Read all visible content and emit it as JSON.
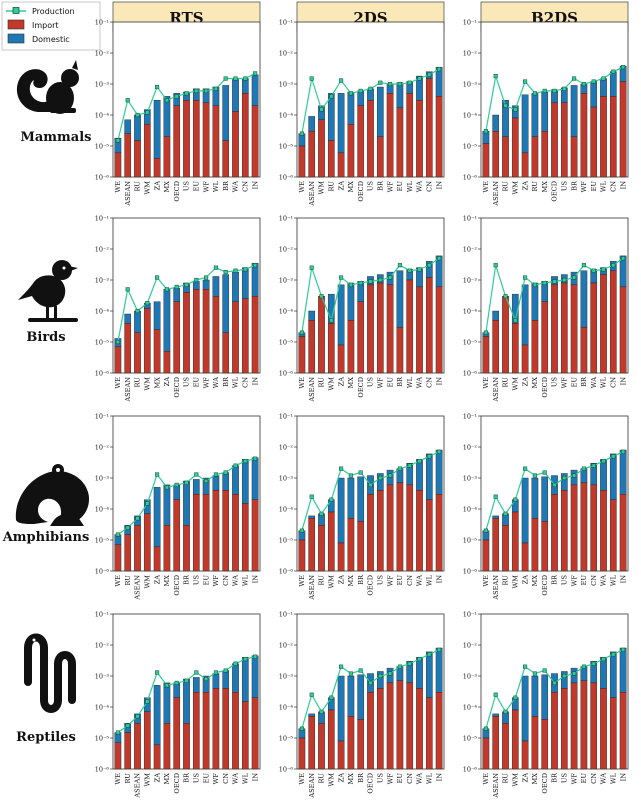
{
  "legend": {
    "production": "Production",
    "import": "Import",
    "domestic": "Domestic"
  },
  "colors": {
    "import": "#c0392b",
    "domestic": "#1f77b4",
    "production": "#2ecc9a",
    "header_fill": "#fbe8b9"
  },
  "y_ticks": [
    "10⁻¹",
    "10⁻²",
    "10⁻³",
    "10⁻⁴",
    "10⁻⁵",
    "10⁻⁶"
  ],
  "chart_data": {
    "type": "bar",
    "yscale": "log",
    "ylim": [
      1e-06,
      0.1
    ],
    "columns": [
      "RTS",
      "2DS",
      "B2DS"
    ],
    "rows": [
      "Mammals",
      "Birds",
      "Amphibians",
      "Reptiles"
    ],
    "series_names": [
      "Import",
      "Domestic",
      "Production"
    ],
    "panels": [
      {
        "row": "Mammals",
        "column": "RTS",
        "categories": [
          "WE",
          "ASEAN",
          "RU",
          "WM",
          "ZA",
          "MX",
          "OECD",
          "US",
          "EU",
          "WF",
          "WL",
          "BR",
          "WA",
          "CN",
          "IN"
        ],
        "import": [
          6e-06,
          2.5e-05,
          1.5e-05,
          5e-05,
          4e-06,
          2e-05,
          0.0002,
          0.0003,
          0.0003,
          0.00025,
          0.0002,
          1.5e-05,
          0.00013,
          0.0005,
          0.0002
        ],
        "total": [
          1.8e-05,
          7e-05,
          0.0001,
          0.00015,
          0.0003,
          0.0004,
          0.0005,
          0.00055,
          0.0007,
          0.0007,
          0.0008,
          0.0009,
          0.0014,
          0.0015,
          0.002
        ],
        "production": [
          1.5e-05,
          0.0003,
          0.0001,
          0.00012,
          0.0008,
          0.0003,
          0.0004,
          0.0005,
          0.0006,
          0.0006,
          0.0007,
          0.0015,
          0.0015,
          0.0015,
          0.0022
        ]
      },
      {
        "row": "Mammals",
        "column": "2DS",
        "categories": [
          "WE",
          "ASEAN",
          "WM",
          "RU",
          "ZA",
          "MX",
          "OECD",
          "US",
          "BR",
          "WF",
          "EU",
          "WL",
          "WA",
          "CN",
          "IN"
        ],
        "import": [
          1e-05,
          3e-05,
          7e-05,
          1.5e-05,
          6e-06,
          5e-05,
          0.0002,
          0.0003,
          2e-05,
          0.0005,
          0.00017,
          0.0005,
          0.0003,
          0.0015,
          0.0004
        ],
        "total": [
          2.5e-05,
          9e-05,
          0.0002,
          0.0005,
          0.0005,
          0.00055,
          0.0006,
          0.0007,
          0.0008,
          0.001,
          0.0011,
          0.0012,
          0.0018,
          0.0025,
          0.0035
        ],
        "production": [
          2.5e-05,
          0.0015,
          0.00015,
          0.0004,
          0.0013,
          0.0005,
          0.0006,
          0.0007,
          0.0011,
          0.001,
          0.001,
          0.0011,
          0.0015,
          0.002,
          0.003
        ]
      },
      {
        "row": "Mammals",
        "column": "B2DS",
        "categories": [
          "WE",
          "ASEAN",
          "RU",
          "WM",
          "ZA",
          "RU",
          "MX",
          "OECD",
          "US",
          "BR",
          "WF",
          "EU",
          "WL",
          "CN",
          "IN"
        ],
        "import": [
          1.2e-05,
          3e-05,
          2e-05,
          8e-05,
          6e-06,
          2e-05,
          3e-05,
          0.00025,
          0.00025,
          2e-05,
          0.0005,
          0.00018,
          0.0004,
          0.0004,
          0.0012
        ],
        "total": [
          3e-05,
          0.0001,
          0.0003,
          0.0002,
          0.00045,
          0.0005,
          0.00055,
          0.00065,
          0.00075,
          0.0009,
          0.001,
          0.0012,
          0.0015,
          0.0025,
          0.0038
        ],
        "production": [
          3e-05,
          0.0018,
          0.0002,
          0.00015,
          0.0012,
          0.0005,
          0.0006,
          0.0006,
          0.0007,
          0.0015,
          0.001,
          0.0012,
          0.0015,
          0.0025,
          0.0035
        ]
      },
      {
        "row": "Birds",
        "column": "RTS",
        "categories": [
          "WE",
          "ASEAN",
          "RU",
          "WM",
          "MX",
          "ZA",
          "OECD",
          "US",
          "EU",
          "WF",
          "WA",
          "BR",
          "WL",
          "CN",
          "IN"
        ],
        "import": [
          7e-06,
          4e-05,
          2e-05,
          0.00012,
          2.5e-05,
          5e-06,
          0.0002,
          0.0004,
          0.0005,
          0.0005,
          0.0003,
          2e-05,
          0.0002,
          0.00025,
          0.0003
        ],
        "total": [
          1.3e-05,
          8e-05,
          0.0001,
          0.00018,
          0.0002,
          0.0005,
          0.00055,
          0.0008,
          0.0009,
          0.001,
          0.0013,
          0.0015,
          0.0018,
          0.0025,
          0.0035
        ],
        "production": [
          1e-05,
          0.0005,
          0.0001,
          0.00018,
          0.0012,
          0.0005,
          0.0006,
          0.0007,
          0.001,
          0.0012,
          0.0025,
          0.0018,
          0.002,
          0.0022,
          0.003
        ]
      },
      {
        "row": "Birds",
        "column": "2DS",
        "categories": [
          "WE",
          "ASEAN",
          "RU",
          "WM",
          "ZA",
          "MX",
          "OECD",
          "US",
          "WF",
          "EU",
          "BR",
          "WL",
          "WA",
          "CN",
          "IN"
        ],
        "import": [
          1.5e-05,
          5e-05,
          0.0003,
          4e-05,
          8e-06,
          5e-05,
          0.0002,
          0.0007,
          0.0008,
          0.0007,
          3e-05,
          0.001,
          0.0006,
          0.0012,
          0.0006
        ],
        "total": [
          2e-05,
          0.0001,
          0.0003,
          0.00035,
          0.0007,
          0.0008,
          0.0009,
          0.0013,
          0.0015,
          0.0018,
          0.002,
          0.0022,
          0.0025,
          0.004,
          0.006
        ],
        "production": [
          2e-05,
          0.0025,
          0.0003,
          5e-05,
          0.0012,
          0.0007,
          0.0008,
          0.0009,
          0.001,
          0.0012,
          0.003,
          0.002,
          0.0022,
          0.003,
          0.005
        ]
      },
      {
        "row": "Birds",
        "column": "B2DS",
        "categories": [
          "WE",
          "ASEAN",
          "RU",
          "WM",
          "ZA",
          "MX",
          "OECD",
          "US",
          "WF",
          "EU",
          "BR",
          "WA",
          "WL",
          "CN",
          "IN"
        ],
        "import": [
          1.5e-05,
          5e-05,
          0.0003,
          4e-05,
          8e-06,
          5e-05,
          0.0002,
          0.0007,
          0.0008,
          0.0007,
          3e-05,
          0.0008,
          0.0015,
          0.002,
          0.0006
        ],
        "total": [
          2e-05,
          0.0001,
          0.0003,
          0.00035,
          0.0007,
          0.0008,
          0.0009,
          0.0013,
          0.0015,
          0.0018,
          0.002,
          0.0022,
          0.0025,
          0.004,
          0.006
        ],
        "production": [
          2e-05,
          0.003,
          0.0003,
          5e-05,
          0.0012,
          0.0007,
          0.0008,
          0.0009,
          0.001,
          0.0012,
          0.003,
          0.002,
          0.0022,
          0.003,
          0.005
        ]
      },
      {
        "row": "Amphibians",
        "column": "RTS",
        "categories": [
          "WE",
          "RU",
          "ASEAN",
          "WM",
          "ZA",
          "MX",
          "OECD",
          "BR",
          "US",
          "EU",
          "WF",
          "CN",
          "WA",
          "WL",
          "IN"
        ],
        "import": [
          7e-06,
          1.5e-05,
          3e-05,
          7e-05,
          6e-06,
          3e-05,
          0.0002,
          3e-05,
          0.0003,
          0.0003,
          0.0004,
          0.0004,
          0.0003,
          0.00015,
          0.0002
        ],
        "total": [
          1.5e-05,
          3e-05,
          6e-05,
          0.0002,
          0.0005,
          0.0006,
          0.0006,
          0.0008,
          0.0009,
          0.001,
          0.0012,
          0.0015,
          0.0025,
          0.004,
          0.0045
        ],
        "production": [
          1.5e-05,
          2.5e-05,
          5e-05,
          0.00015,
          0.0013,
          0.0005,
          0.0006,
          0.0007,
          0.0013,
          0.0008,
          0.0013,
          0.0015,
          0.0025,
          0.0035,
          0.0042
        ]
      },
      {
        "row": "Amphibians",
        "column": "2DS",
        "categories": [
          "WE",
          "ASEAN",
          "RU",
          "WM",
          "ZA",
          "MX",
          "BR",
          "OECD",
          "US",
          "WF",
          "EU",
          "CN",
          "WA",
          "WL",
          "IN"
        ],
        "import": [
          1e-05,
          5e-05,
          3e-05,
          8e-05,
          8e-06,
          5e-05,
          4e-05,
          0.0003,
          0.0004,
          0.0006,
          0.0007,
          0.0006,
          0.0004,
          0.0002,
          0.0003
        ],
        "total": [
          2e-05,
          6e-05,
          7e-05,
          0.0002,
          0.001,
          0.001,
          0.0011,
          0.0012,
          0.0014,
          0.0018,
          0.002,
          0.003,
          0.004,
          0.006,
          0.008
        ],
        "production": [
          2e-05,
          0.00025,
          7e-05,
          0.0002,
          0.002,
          0.0012,
          0.0015,
          0.0006,
          0.001,
          0.0012,
          0.002,
          0.0025,
          0.0035,
          0.005,
          0.007
        ]
      },
      {
        "row": "Amphibians",
        "column": "B2DS",
        "categories": [
          "WE",
          "ASEAN",
          "RU",
          "WM",
          "ZA",
          "MX",
          "OECD",
          "BR",
          "US",
          "WF",
          "EU",
          "CN",
          "WA",
          "WL",
          "IN"
        ],
        "import": [
          1e-05,
          5e-05,
          3e-05,
          8e-05,
          8e-06,
          5e-05,
          4e-05,
          0.0003,
          0.0004,
          0.0006,
          0.0007,
          0.0006,
          0.0004,
          0.0002,
          0.0003
        ],
        "total": [
          2e-05,
          6e-05,
          7e-05,
          0.0002,
          0.001,
          0.001,
          0.0011,
          0.0012,
          0.0014,
          0.0018,
          0.002,
          0.003,
          0.004,
          0.006,
          0.008
        ],
        "production": [
          2e-05,
          0.00025,
          7e-05,
          0.0002,
          0.002,
          0.0012,
          0.0015,
          0.0006,
          0.001,
          0.0012,
          0.002,
          0.0025,
          0.0035,
          0.005,
          0.007
        ]
      },
      {
        "row": "Reptiles",
        "column": "RTS",
        "categories": [
          "WE",
          "RU",
          "ASEAN",
          "WM",
          "ZA",
          "MX",
          "OECD",
          "BR",
          "US",
          "EU",
          "WF",
          "CN",
          "WA",
          "WL",
          "IN"
        ],
        "import": [
          7e-06,
          1.5e-05,
          3e-05,
          7e-05,
          6e-06,
          3e-05,
          0.0002,
          3e-05,
          0.0003,
          0.0003,
          0.0004,
          0.0004,
          0.0003,
          0.00015,
          0.0002
        ],
        "total": [
          1.5e-05,
          3e-05,
          6e-05,
          0.0002,
          0.0005,
          0.0006,
          0.0006,
          0.0008,
          0.0009,
          0.001,
          0.0012,
          0.0015,
          0.0025,
          0.004,
          0.0045
        ],
        "production": [
          1.5e-05,
          2.5e-05,
          5e-05,
          0.00015,
          0.0013,
          0.0005,
          0.0006,
          0.0007,
          0.0013,
          0.0008,
          0.0013,
          0.0015,
          0.0025,
          0.0035,
          0.0042
        ]
      },
      {
        "row": "Reptiles",
        "column": "2DS",
        "categories": [
          "WE",
          "ASEAN",
          "RU",
          "WM",
          "ZA",
          "MX",
          "BR",
          "OECD",
          "US",
          "WF",
          "EU",
          "CN",
          "WA",
          "WL",
          "IN"
        ],
        "import": [
          1e-05,
          5e-05,
          3e-05,
          8e-05,
          8e-06,
          5e-05,
          4e-05,
          0.0003,
          0.0004,
          0.0006,
          0.0007,
          0.0006,
          0.0004,
          0.0002,
          0.0003
        ],
        "total": [
          2e-05,
          6e-05,
          7e-05,
          0.0002,
          0.001,
          0.001,
          0.0011,
          0.0012,
          0.0014,
          0.0018,
          0.002,
          0.003,
          0.004,
          0.006,
          0.008
        ],
        "production": [
          2e-05,
          0.00025,
          7e-05,
          0.0002,
          0.002,
          0.0012,
          0.0015,
          0.0006,
          0.001,
          0.0012,
          0.002,
          0.0025,
          0.0035,
          0.005,
          0.007
        ]
      },
      {
        "row": "Reptiles",
        "column": "B2DS",
        "categories": [
          "WE",
          "ASEAN",
          "RU",
          "WM",
          "ZA",
          "MX",
          "OECD",
          "BR",
          "US",
          "WF",
          "EU",
          "CN",
          "WA",
          "WL",
          "IN"
        ],
        "import": [
          1e-05,
          5e-05,
          3e-05,
          8e-05,
          8e-06,
          5e-05,
          4e-05,
          0.0003,
          0.0004,
          0.0006,
          0.0007,
          0.0006,
          0.0004,
          0.0002,
          0.0003
        ],
        "total": [
          2e-05,
          6e-05,
          7e-05,
          0.0002,
          0.001,
          0.001,
          0.0011,
          0.0012,
          0.0014,
          0.0018,
          0.002,
          0.003,
          0.004,
          0.006,
          0.008
        ],
        "production": [
          2e-05,
          0.00025,
          7e-05,
          0.0002,
          0.002,
          0.0012,
          0.0015,
          0.0006,
          0.001,
          0.0012,
          0.002,
          0.0025,
          0.0035,
          0.005,
          0.007
        ]
      }
    ]
  }
}
